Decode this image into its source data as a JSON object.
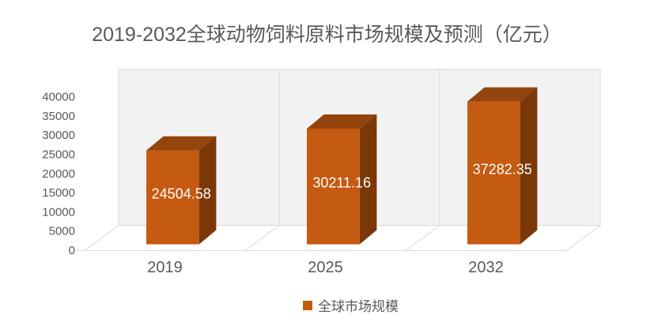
{
  "title": "2019-2032全球动物饲料原料市场规模及预测（亿元）",
  "legend": {
    "label": "全球市场规模",
    "swatch_color": "#C55A11"
  },
  "chart_data": {
    "type": "bar",
    "variant": "3d-column",
    "title": "2019-2032全球动物饲料原料市场规模及预测（亿元）",
    "categories": [
      "2019",
      "2025",
      "2032"
    ],
    "series": [
      {
        "name": "全球市场规模",
        "values": [
          24504.58,
          30211.16,
          37282.35
        ],
        "labels": [
          "24504.58",
          "30211.16",
          "37282.35"
        ]
      }
    ],
    "xlabel": "",
    "ylabel": "",
    "ylim": [
      0,
      40000
    ],
    "ytick_step": 5000,
    "ytick_labels": [
      "0",
      "5000",
      "10000",
      "15000",
      "20000",
      "25000",
      "30000",
      "35000",
      "40000"
    ],
    "legend_position": "bottom",
    "grid": "vertical category separators on back wall and floor, no horizontal gridlines",
    "colors": {
      "bar_front": "#C55A11",
      "bar_top": "#94440D",
      "bar_side": "#7A3809",
      "wall_fill": "#F2F2F2",
      "floor_fill": "#FFFFFF",
      "edge_line": "#D9D9D9",
      "axis_text": "#595959",
      "title_text": "#595959",
      "data_label_text": "#FFFFFF"
    }
  }
}
